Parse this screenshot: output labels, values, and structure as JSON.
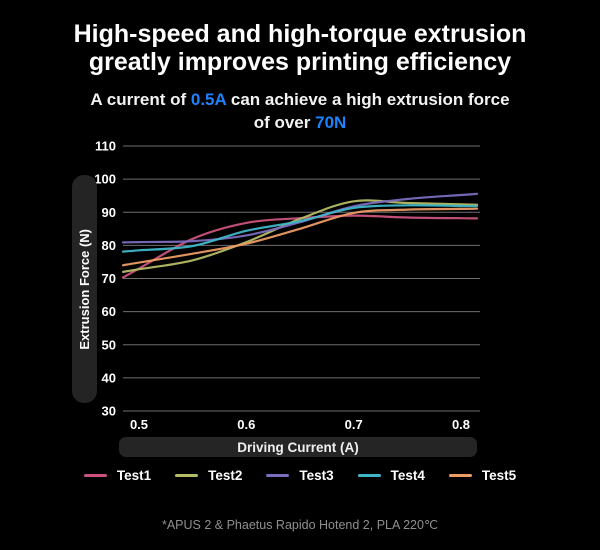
{
  "title": {
    "line1": "High-speed and high-torque extrusion",
    "line2": "greatly improves printing efficiency"
  },
  "subtitle": {
    "part1": "A current of ",
    "highlight1": "0.5A",
    "part2": " can achieve a high extrusion force of over ",
    "highlight2": "70N",
    "highlight_color": "#1e82ff"
  },
  "chart_data": {
    "type": "line",
    "x": [
      0.5,
      0.55,
      0.6,
      0.65,
      0.7,
      0.75,
      0.8
    ],
    "series": [
      {
        "name": "Test1",
        "color": "#c9537e",
        "values": [
          73.0,
          82.0,
          86.8,
          88.2,
          89.0,
          88.4,
          88.2
        ]
      },
      {
        "name": "Test2",
        "color": "#b4bc64",
        "values": [
          72.8,
          75.5,
          81.0,
          88.0,
          93.3,
          92.8,
          92.4
        ]
      },
      {
        "name": "Test3",
        "color": "#7b6cbd",
        "values": [
          81.0,
          81.3,
          83.0,
          87.0,
          91.8,
          94.0,
          95.2
        ]
      },
      {
        "name": "Test4",
        "color": "#3eb6c8",
        "values": [
          78.5,
          79.8,
          84.4,
          87.3,
          91.3,
          92.1,
          91.9
        ]
      },
      {
        "name": "Test5",
        "color": "#ec9b63",
        "values": [
          74.8,
          77.5,
          80.5,
          85.0,
          89.8,
          90.8,
          91.0
        ]
      }
    ],
    "xlabel": "Driving Current (A)",
    "ylabel": "Extrusion Force (N)",
    "yticks": [
      110,
      100,
      90,
      80,
      70,
      60,
      50,
      40,
      30
    ],
    "xtick_labels": [
      "0.5",
      "0.6",
      "0.7",
      "0.8"
    ],
    "ylim": [
      30,
      110
    ],
    "xlim": [
      0.5,
      0.8
    ],
    "grid": "horizontal",
    "gridline_color": "#6e6e6e",
    "legend_position": "bottom"
  },
  "footnote": "*APUS 2 & Phaetus Rapido Hotend 2, PLA 220℃"
}
